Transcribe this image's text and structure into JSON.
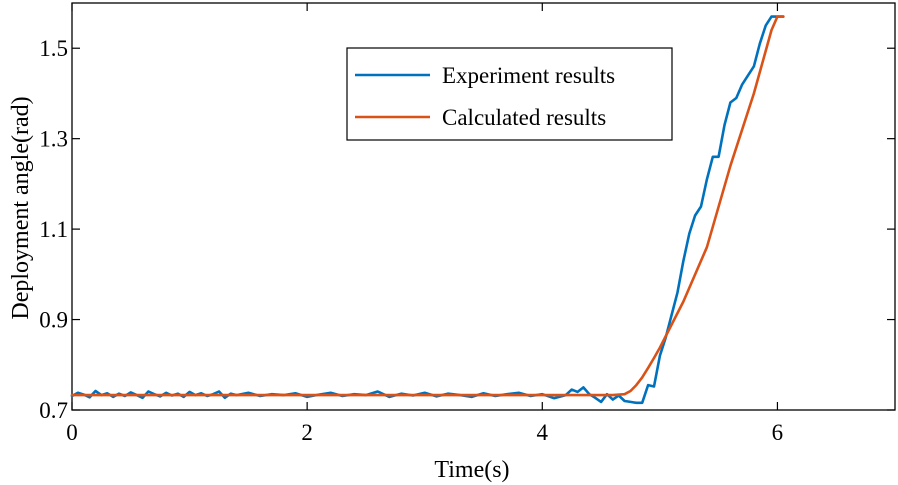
{
  "chart_data": {
    "type": "line",
    "title": "",
    "xlabel": "Time(s)",
    "ylabel": "Deployment angle(rad)",
    "xlim": [
      0,
      7
    ],
    "ylim": [
      0.7,
      1.6
    ],
    "xticks": [
      0,
      2,
      4,
      6
    ],
    "xtick_labels": [
      "0",
      "2",
      "4",
      "6"
    ],
    "yticks": [
      0.7,
      0.9,
      1.1,
      1.3,
      1.5
    ],
    "ytick_labels": [
      "0.7",
      "0.9",
      "1.1",
      "1.3",
      "1.5"
    ],
    "grid": false,
    "legend_position": "top-right",
    "series": [
      {
        "name": "Experiment results",
        "color": "#0072BD",
        "x": [
          0.0,
          0.05,
          0.1,
          0.15,
          0.2,
          0.25,
          0.3,
          0.35,
          0.4,
          0.45,
          0.5,
          0.55,
          0.6,
          0.65,
          0.7,
          0.75,
          0.8,
          0.85,
          0.9,
          0.95,
          1.0,
          1.05,
          1.1,
          1.15,
          1.2,
          1.25,
          1.3,
          1.35,
          1.4,
          1.5,
          1.6,
          1.7,
          1.8,
          1.9,
          2.0,
          2.1,
          2.2,
          2.3,
          2.4,
          2.5,
          2.6,
          2.7,
          2.8,
          2.9,
          3.0,
          3.1,
          3.2,
          3.3,
          3.4,
          3.5,
          3.6,
          3.7,
          3.8,
          3.9,
          4.0,
          4.1,
          4.2,
          4.25,
          4.3,
          4.35,
          4.4,
          4.45,
          4.5,
          4.55,
          4.6,
          4.65,
          4.7,
          4.75,
          4.8,
          4.85,
          4.9,
          4.95,
          5.0,
          5.05,
          5.1,
          5.15,
          5.2,
          5.25,
          5.3,
          5.35,
          5.4,
          5.45,
          5.5,
          5.55,
          5.6,
          5.65,
          5.7,
          5.75,
          5.8,
          5.85,
          5.9,
          5.95,
          6.0,
          6.05
        ],
        "y": [
          0.731,
          0.738,
          0.734,
          0.728,
          0.742,
          0.733,
          0.737,
          0.729,
          0.736,
          0.731,
          0.739,
          0.733,
          0.727,
          0.741,
          0.735,
          0.73,
          0.738,
          0.732,
          0.736,
          0.729,
          0.74,
          0.733,
          0.737,
          0.731,
          0.735,
          0.741,
          0.727,
          0.736,
          0.733,
          0.738,
          0.731,
          0.735,
          0.733,
          0.737,
          0.729,
          0.734,
          0.738,
          0.731,
          0.735,
          0.733,
          0.741,
          0.729,
          0.736,
          0.732,
          0.738,
          0.73,
          0.736,
          0.733,
          0.729,
          0.737,
          0.731,
          0.735,
          0.738,
          0.731,
          0.735,
          0.726,
          0.733,
          0.745,
          0.74,
          0.75,
          0.735,
          0.727,
          0.718,
          0.735,
          0.723,
          0.732,
          0.72,
          0.718,
          0.716,
          0.716,
          0.755,
          0.752,
          0.82,
          0.86,
          0.91,
          0.96,
          1.03,
          1.09,
          1.13,
          1.15,
          1.21,
          1.26,
          1.26,
          1.33,
          1.38,
          1.39,
          1.42,
          1.44,
          1.46,
          1.51,
          1.55,
          1.57,
          1.57,
          1.57
        ]
      },
      {
        "name": "Calculated results",
        "color": "#D95319",
        "x": [
          0.0,
          1.0,
          2.0,
          3.0,
          4.0,
          4.6,
          4.7,
          4.75,
          4.8,
          4.85,
          4.9,
          4.95,
          5.0,
          5.2,
          5.4,
          5.6,
          5.8,
          5.95,
          6.0,
          6.05
        ],
        "y": [
          0.733,
          0.733,
          0.733,
          0.733,
          0.733,
          0.733,
          0.735,
          0.742,
          0.755,
          0.772,
          0.793,
          0.815,
          0.838,
          0.94,
          1.06,
          1.24,
          1.4,
          1.54,
          1.57,
          1.57
        ]
      }
    ]
  }
}
